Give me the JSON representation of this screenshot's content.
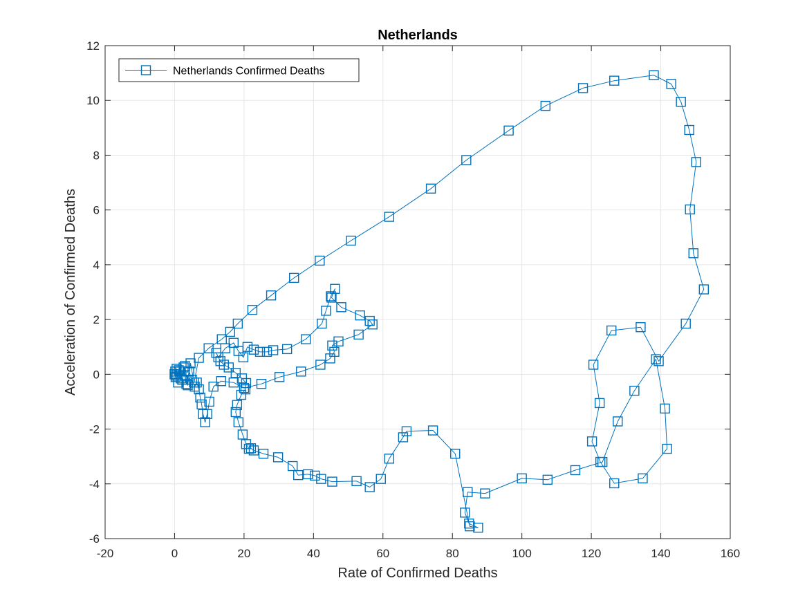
{
  "chart_data": {
    "type": "line",
    "title": "Netherlands",
    "xlabel": "Rate of Confirmed Deaths",
    "ylabel": "Acceleration of Confirmed Deaths",
    "xlim": [
      -20,
      160
    ],
    "ylim": [
      -6,
      12
    ],
    "xticks": [
      -20,
      0,
      20,
      40,
      60,
      80,
      100,
      120,
      140,
      160
    ],
    "yticks": [
      -6,
      -4,
      -2,
      0,
      2,
      4,
      6,
      8,
      10,
      12
    ],
    "xtick_labels": [
      "-20",
      "0",
      "20",
      "40",
      "60",
      "80",
      "100",
      "120",
      "140",
      "160"
    ],
    "ytick_labels": [
      "-6",
      "-4",
      "-2",
      "0",
      "2",
      "4",
      "6",
      "8",
      "10",
      "12"
    ],
    "grid": true,
    "legend": {
      "position": "top-left",
      "entries": [
        "Netherlands Confirmed Deaths"
      ]
    },
    "series": [
      {
        "name": "Netherlands Confirmed Deaths",
        "color": "#0072BD",
        "marker": "square",
        "x": [
          0,
          0.3,
          0.6,
          1.0,
          1.5,
          2.2,
          3.0,
          3.8,
          4.6,
          5.6,
          7.0,
          9.8,
          13.6,
          16.0,
          18.2,
          22.4,
          27.8,
          34.4,
          41.8,
          50.8,
          61.8,
          73.8,
          84.0,
          96.2,
          106.8,
          117.6,
          126.6,
          138.0,
          143.0,
          145.8,
          148.2,
          150.2,
          148.4,
          149.4,
          152.4,
          147.2,
          139.4,
          134.2,
          125.8,
          120.6,
          122.4,
          120.2,
          122.6,
          126.6,
          134.8,
          141.8,
          141.2,
          138.6,
          132.4,
          127.6,
          123.2,
          115.4,
          107.4,
          100.0,
          89.4,
          84.4,
          83.6,
          84.8,
          87.4,
          85.0,
          80.8,
          74.4,
          66.8,
          65.8,
          61.8,
          59.4,
          56.2,
          52.4,
          45.4,
          42.2,
          40.4,
          38.4,
          35.6,
          34.0,
          29.8,
          25.6,
          22.8,
          22.0,
          21.4,
          20.6,
          19.6,
          18.4,
          17.6,
          18.0,
          19.2,
          20.4,
          20.6,
          19.4,
          17.6,
          15.6,
          14.2,
          13.2,
          12.0,
          12.6,
          14.6,
          17.0,
          18.4,
          19.8,
          21.0,
          22.8,
          24.6,
          26.6,
          28.4,
          32.4,
          37.8,
          42.4,
          43.6,
          45.0,
          46.2,
          45.2,
          48.0,
          53.4,
          56.2,
          57.0,
          53.0,
          47.2,
          45.4,
          46.0,
          44.8,
          42.0,
          36.4,
          30.2,
          25.0,
          20.0,
          17.0,
          13.4,
          11.2,
          10.0,
          9.4,
          8.8,
          8.2,
          7.8,
          7.4,
          7.0,
          6.4,
          5.8,
          5.0,
          4.2,
          3.4,
          2.6,
          1.8,
          1.2,
          0.6,
          0.2,
          0.1
        ],
        "y": [
          0,
          -0.1,
          0.2,
          -0.3,
          0.1,
          -0.2,
          0.3,
          -0.4,
          0.4,
          -0.3,
          0.6,
          0.95,
          1.28,
          1.55,
          1.85,
          2.35,
          2.88,
          3.52,
          4.15,
          4.88,
          5.75,
          6.78,
          7.82,
          8.9,
          9.8,
          10.45,
          10.72,
          10.92,
          10.6,
          9.95,
          8.92,
          7.75,
          6.02,
          4.42,
          3.1,
          1.85,
          0.48,
          1.72,
          1.6,
          0.35,
          -1.05,
          -2.45,
          -3.2,
          -3.98,
          -3.8,
          -2.72,
          -1.25,
          0.55,
          -0.6,
          -1.72,
          -3.2,
          -3.5,
          -3.85,
          -3.8,
          -4.35,
          -4.3,
          -5.05,
          -5.45,
          -5.6,
          -5.55,
          -2.9,
          -2.05,
          -2.08,
          -2.3,
          -3.08,
          -3.82,
          -4.12,
          -3.9,
          -3.92,
          -3.82,
          -3.7,
          -3.65,
          -3.68,
          -3.35,
          -3.03,
          -2.9,
          -2.78,
          -2.7,
          -2.72,
          -2.55,
          -2.2,
          -1.75,
          -1.38,
          -1.12,
          -0.75,
          -0.55,
          -0.32,
          -0.15,
          0.05,
          0.25,
          0.35,
          0.48,
          0.78,
          0.62,
          0.95,
          1.15,
          0.85,
          0.62,
          1.0,
          0.9,
          0.82,
          0.82,
          0.88,
          0.92,
          1.28,
          1.85,
          2.32,
          2.85,
          3.12,
          2.8,
          2.45,
          2.15,
          1.95,
          1.82,
          1.45,
          1.2,
          1.05,
          0.82,
          0.58,
          0.35,
          0.1,
          -0.1,
          -0.35,
          -0.5,
          -0.3,
          -0.25,
          -0.45,
          -1.0,
          -1.45,
          -1.75,
          -1.45,
          -1.1,
          -0.85,
          -0.55,
          -0.3,
          -0.45,
          -0.2,
          0.1,
          -0.35,
          0.25,
          -0.15,
          0.15,
          -0.05,
          0.1,
          0
        ]
      }
    ]
  }
}
